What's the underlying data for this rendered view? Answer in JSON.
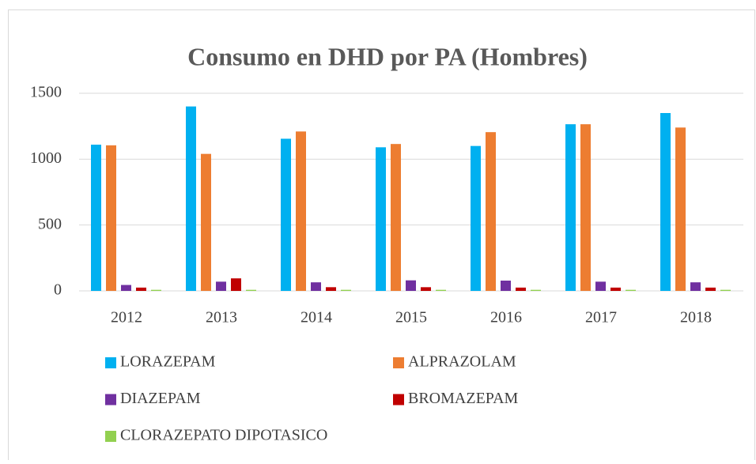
{
  "chart_data": {
    "type": "bar",
    "title": "Consumo en DHD por PA (Hombres)",
    "categories": [
      "2012",
      "2013",
      "2014",
      "2015",
      "2016",
      "2017",
      "2018"
    ],
    "series": [
      {
        "name": "LORAZEPAM",
        "color": "#00b0f0",
        "values": [
          1110,
          1400,
          1155,
          1090,
          1100,
          1265,
          1350
        ]
      },
      {
        "name": "ALPRAZOLAM",
        "color": "#ed7d31",
        "values": [
          1105,
          1040,
          1210,
          1115,
          1205,
          1265,
          1240
        ]
      },
      {
        "name": "DIAZEPAM",
        "color": "#7030a0",
        "values": [
          45,
          70,
          65,
          80,
          78,
          70,
          65
        ]
      },
      {
        "name": "BROMAZEPAM",
        "color": "#c00000",
        "values": [
          25,
          95,
          28,
          28,
          25,
          25,
          25
        ]
      },
      {
        "name": "CLORAZEPATO DIPOTASICO",
        "color": "#92d050",
        "values": [
          8,
          8,
          8,
          8,
          8,
          8,
          8
        ]
      }
    ],
    "ylim": [
      0,
      1500
    ],
    "yticks": [
      0,
      500,
      1000,
      1500
    ],
    "grid": true,
    "legend": "bottom"
  }
}
